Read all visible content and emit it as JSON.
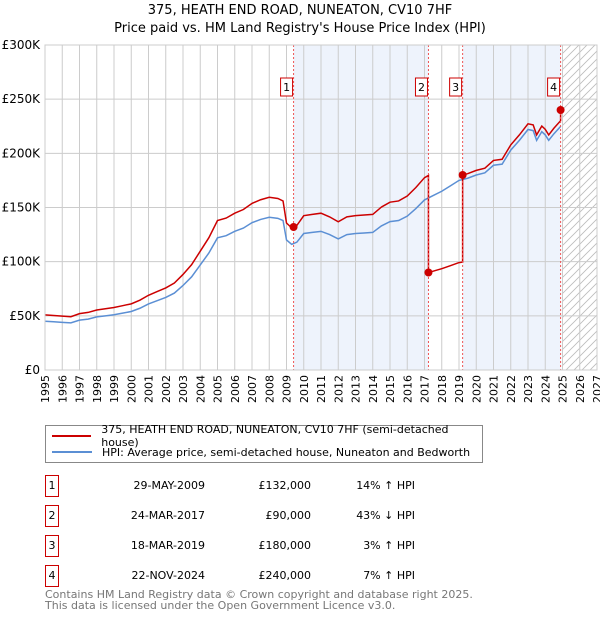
{
  "title_line1": "375, HEATH END ROAD, NUNEATON, CV10 7HF",
  "title_line2": "Price paid vs. HM Land Registry's House Price Index (HPI)",
  "chart_data": {
    "type": "line",
    "title": "375, HEATH END ROAD, NUNEATON, CV10 7HF — Price paid vs. HM Land Registry's House Price Index (HPI)",
    "xlim": [
      1995,
      2027
    ],
    "ylim": [
      0,
      300000
    ],
    "x_ticks": [
      "1995",
      "1996",
      "1997",
      "1998",
      "1999",
      "2000",
      "2001",
      "2002",
      "2003",
      "2004",
      "2005",
      "2006",
      "2007",
      "2008",
      "2009",
      "2010",
      "2011",
      "2012",
      "2013",
      "2014",
      "2015",
      "2016",
      "2017",
      "2018",
      "2019",
      "2020",
      "2021",
      "2022",
      "2023",
      "2024",
      "2025",
      "2026",
      "2027"
    ],
    "y_ticks": [
      {
        "v": 0,
        "label": "£0"
      },
      {
        "v": 50000,
        "label": "£50K"
      },
      {
        "v": 100000,
        "label": "£100K"
      },
      {
        "v": 150000,
        "label": "£150K"
      },
      {
        "v": 200000,
        "label": "£200K"
      },
      {
        "v": 250000,
        "label": "£250K"
      },
      {
        "v": 300000,
        "label": "£300K"
      }
    ],
    "grid": true,
    "forecast_hatch_from": 2025,
    "colors": {
      "property": "#cc0000",
      "hpi": "#5b8fd4",
      "shade": "#eef3fc"
    },
    "hpi_series": {
      "name": "HPI: Average price, semi-detached house, Nuneaton and Bedworth",
      "x": [
        1995,
        1995.5,
        1996,
        1996.5,
        1997,
        1997.5,
        1998,
        1998.5,
        1999,
        1999.5,
        2000,
        2000.5,
        2001,
        2001.5,
        2002,
        2002.5,
        2003,
        2003.5,
        2004,
        2004.5,
        2005,
        2005.5,
        2006,
        2006.5,
        2007,
        2007.5,
        2008,
        2008.5,
        2008.8,
        2009,
        2009.3,
        2009.6,
        2010,
        2010.5,
        2011,
        2011.5,
        2012,
        2012.5,
        2013,
        2013.5,
        2014,
        2014.5,
        2015,
        2015.5,
        2016,
        2016.5,
        2017,
        2017.5,
        2018,
        2018.5,
        2019,
        2019.5,
        2020,
        2020.5,
        2021,
        2021.5,
        2022,
        2022.5,
        2023,
        2023.3,
        2023.5,
        2023.8,
        2024,
        2024.2,
        2024.5,
        2024.9
      ],
      "values": [
        45000,
        44500,
        44000,
        43500,
        46000,
        47000,
        49000,
        50000,
        51000,
        52500,
        54000,
        57000,
        61000,
        64000,
        67000,
        71000,
        78000,
        86000,
        97000,
        108000,
        122000,
        124000,
        128000,
        131000,
        136000,
        139000,
        141000,
        140000,
        138000,
        120000,
        116000,
        118000,
        126000,
        127000,
        128000,
        125000,
        121000,
        125000,
        126000,
        126500,
        127000,
        133000,
        137000,
        138000,
        142000,
        149000,
        157000,
        161000,
        165000,
        170000,
        175000,
        177000,
        180000,
        182000,
        189000,
        190000,
        203000,
        212000,
        222000,
        221000,
        212000,
        220000,
        217000,
        212000,
        218000,
        225000
      ]
    },
    "property_series": {
      "name": "375, HEATH END ROAD, NUNEATON, CV10 7HF (semi-detached house)"
    },
    "sales": [
      {
        "id": "1",
        "date": "29-MAY-2009",
        "x": 2009.41,
        "price": 132000,
        "price_label": "£132,000",
        "hpi_label": "14% ↑ HPI"
      },
      {
        "id": "2",
        "date": "24-MAR-2017",
        "x": 2017.23,
        "price": 90000,
        "price_label": "£90,000",
        "hpi_label": "43% ↓ HPI"
      },
      {
        "id": "3",
        "date": "18-MAR-2019",
        "x": 2019.21,
        "price": 180000,
        "price_label": "£180,000",
        "hpi_label": "3% ↑ HPI"
      },
      {
        "id": "4",
        "date": "22-NOV-2024",
        "x": 2024.89,
        "price": 240000,
        "price_label": "£240,000",
        "hpi_label": "7% ↑ HPI"
      }
    ]
  },
  "legend": {
    "property": "375, HEATH END ROAD, NUNEATON, CV10 7HF (semi-detached house)",
    "hpi": "HPI: Average price, semi-detached house, Nuneaton and Bedworth"
  },
  "footer": {
    "line1": "Contains HM Land Registry data © Crown copyright and database right 2025.",
    "line2": "This data is licensed under the Open Government Licence v3.0."
  }
}
